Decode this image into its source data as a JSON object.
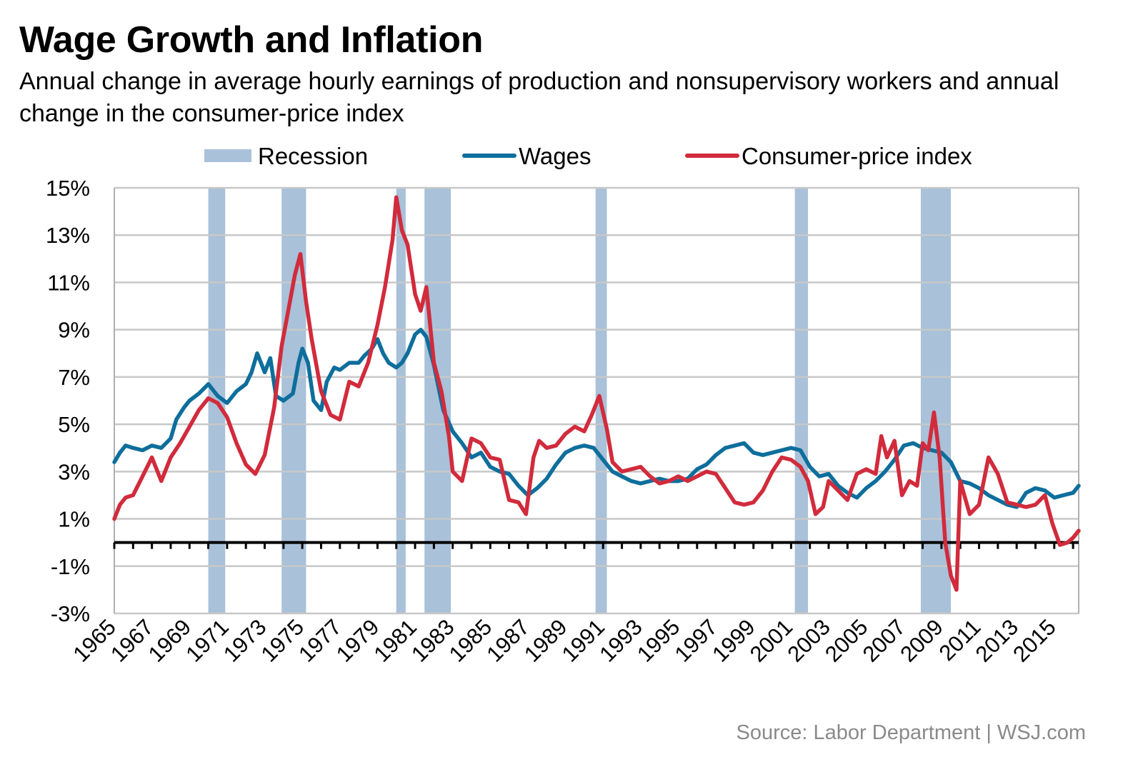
{
  "chart_data": {
    "type": "line",
    "title": "Wage Growth and Inflation",
    "subtitle": "Annual change in average hourly earnings of production and nonsupervisory workers and annual change in the consumer-price index",
    "source": "Source: Labor Department  |  WSJ.com",
    "xlabel": "",
    "ylabel": "",
    "ylim": [
      -3,
      15
    ],
    "xlim": [
      1965,
      2016.3
    ],
    "yticks": [
      15,
      13,
      11,
      9,
      7,
      5,
      3,
      1,
      -1,
      -3
    ],
    "ytick_labels": [
      "15%",
      "13%",
      "11%",
      "9%",
      "7%",
      "5%",
      "3%",
      "1%",
      "-1%",
      "-3%"
    ],
    "xticks": [
      1965,
      1967,
      1969,
      1971,
      1973,
      1975,
      1977,
      1979,
      1981,
      1983,
      1985,
      1987,
      1989,
      1991,
      1993,
      1995,
      1997,
      1999,
      2001,
      2003,
      2005,
      2007,
      2009,
      2011,
      2013,
      2015
    ],
    "xtick_labels": [
      "1965",
      "1967",
      "1969",
      "1971",
      "1973",
      "1975",
      "1977",
      "1979",
      "1981",
      "1983",
      "1985",
      "1987",
      "1989",
      "1991",
      "1993",
      "1995",
      "1997",
      "1999",
      "2001",
      "2003",
      "2005",
      "2007",
      "2009",
      "2011",
      "2013",
      "2015"
    ],
    "grid": true,
    "legend_position": "top-center",
    "legend": [
      {
        "label": "Recession",
        "kind": "band",
        "color": "#a9c1d9"
      },
      {
        "label": "Wages",
        "kind": "line",
        "color": "#0e6e9c"
      },
      {
        "label": "Consumer-price index",
        "kind": "line",
        "color": "#d12b3c"
      }
    ],
    "recessions": [
      [
        1970.0,
        1970.9
      ],
      [
        1973.9,
        1975.2
      ],
      [
        1980.0,
        1980.5
      ],
      [
        1981.5,
        1982.9
      ],
      [
        1990.6,
        1991.2
      ],
      [
        2001.2,
        2001.9
      ],
      [
        2007.9,
        2009.5
      ]
    ],
    "series": [
      {
        "name": "Wages",
        "color": "#0e6e9c",
        "x": [
          1965.0,
          1965.3,
          1965.6,
          1966.0,
          1966.5,
          1967.0,
          1967.5,
          1968.0,
          1968.3,
          1968.7,
          1969.0,
          1969.5,
          1970.0,
          1970.5,
          1971.0,
          1971.5,
          1972.0,
          1972.3,
          1972.6,
          1972.8,
          1973.0,
          1973.3,
          1973.6,
          1974.0,
          1974.5,
          1974.8,
          1975.0,
          1975.3,
          1975.6,
          1976.0,
          1976.3,
          1976.7,
          1977.0,
          1977.5,
          1978.0,
          1978.3,
          1978.7,
          1979.0,
          1979.3,
          1979.6,
          1980.0,
          1980.3,
          1980.6,
          1981.0,
          1981.3,
          1981.6,
          1982.0,
          1982.5,
          1983.0,
          1983.5,
          1984.0,
          1984.5,
          1985.0,
          1985.5,
          1986.0,
          1986.5,
          1987.0,
          1987.5,
          1988.0,
          1988.5,
          1989.0,
          1989.5,
          1990.0,
          1990.5,
          1991.0,
          1991.5,
          1992.0,
          1992.5,
          1993.0,
          1993.5,
          1994.0,
          1994.5,
          1995.0,
          1995.5,
          1996.0,
          1996.5,
          1997.0,
          1997.5,
          1998.0,
          1998.5,
          1999.0,
          1999.5,
          2000.0,
          2000.5,
          2001.0,
          2001.5,
          2002.0,
          2002.5,
          2003.0,
          2003.5,
          2004.0,
          2004.5,
          2005.0,
          2005.5,
          2006.0,
          2006.5,
          2007.0,
          2007.5,
          2008.0,
          2008.5,
          2009.0,
          2009.5,
          2010.0,
          2010.5,
          2011.0,
          2011.5,
          2012.0,
          2012.5,
          2013.0,
          2013.5,
          2014.0,
          2014.5,
          2015.0,
          2015.5,
          2016.0,
          2016.3
        ],
        "values": [
          3.4,
          3.8,
          4.1,
          4.0,
          3.9,
          4.1,
          4.0,
          4.4,
          5.2,
          5.7,
          6.0,
          6.3,
          6.7,
          6.2,
          5.9,
          6.4,
          6.7,
          7.2,
          8.0,
          7.6,
          7.2,
          7.8,
          6.2,
          6.0,
          6.3,
          7.6,
          8.2,
          7.6,
          6.0,
          5.6,
          6.8,
          7.4,
          7.3,
          7.6,
          7.6,
          7.9,
          8.2,
          8.6,
          8.0,
          7.6,
          7.4,
          7.6,
          8.0,
          8.8,
          9.0,
          8.7,
          7.5,
          5.6,
          4.7,
          4.2,
          3.6,
          3.8,
          3.2,
          3.0,
          2.9,
          2.4,
          2.0,
          2.3,
          2.7,
          3.3,
          3.8,
          4.0,
          4.1,
          4.0,
          3.5,
          3.0,
          2.8,
          2.6,
          2.5,
          2.6,
          2.7,
          2.6,
          2.6,
          2.7,
          3.1,
          3.3,
          3.7,
          4.0,
          4.1,
          4.2,
          3.8,
          3.7,
          3.8,
          3.9,
          4.0,
          3.9,
          3.2,
          2.8,
          2.9,
          2.4,
          2.1,
          1.9,
          2.3,
          2.6,
          3.0,
          3.5,
          4.1,
          4.2,
          4.0,
          3.9,
          3.8,
          3.4,
          2.6,
          2.5,
          2.3,
          2.0,
          1.8,
          1.6,
          1.5,
          2.1,
          2.3,
          2.2,
          1.9,
          2.0,
          2.1,
          2.4
        ]
      },
      {
        "name": "Consumer-price index",
        "color": "#d12b3c",
        "x": [
          1965.0,
          1965.3,
          1965.6,
          1966.0,
          1966.5,
          1967.0,
          1967.5,
          1968.0,
          1968.5,
          1969.0,
          1969.5,
          1970.0,
          1970.5,
          1971.0,
          1971.5,
          1972.0,
          1972.5,
          1973.0,
          1973.5,
          1973.9,
          1974.3,
          1974.6,
          1974.9,
          1975.2,
          1975.5,
          1976.0,
          1976.5,
          1977.0,
          1977.5,
          1978.0,
          1978.5,
          1979.0,
          1979.4,
          1979.8,
          1980.0,
          1980.3,
          1980.6,
          1981.0,
          1981.3,
          1981.6,
          1982.0,
          1982.4,
          1982.8,
          1983.0,
          1983.5,
          1984.0,
          1984.5,
          1985.0,
          1985.5,
          1986.0,
          1986.5,
          1986.9,
          1987.3,
          1987.6,
          1988.0,
          1988.5,
          1989.0,
          1989.5,
          1990.0,
          1990.4,
          1990.8,
          1991.2,
          1991.5,
          1992.0,
          1992.5,
          1993.0,
          1993.5,
          1994.0,
          1994.5,
          1995.0,
          1995.5,
          1996.0,
          1996.5,
          1997.0,
          1997.5,
          1998.0,
          1998.5,
          1999.0,
          1999.5,
          2000.0,
          2000.5,
          2001.0,
          2001.5,
          2001.9,
          2002.3,
          2002.7,
          2003.0,
          2003.5,
          2004.0,
          2004.5,
          2005.0,
          2005.5,
          2005.8,
          2006.1,
          2006.5,
          2006.9,
          2007.3,
          2007.7,
          2008.0,
          2008.3,
          2008.6,
          2008.9,
          2009.2,
          2009.5,
          2009.8,
          2010.0,
          2010.5,
          2011.0,
          2011.5,
          2012.0,
          2012.5,
          2013.0,
          2013.5,
          2014.0,
          2014.5,
          2014.9,
          2015.3,
          2015.7,
          2016.0,
          2016.3
        ],
        "values": [
          1.0,
          1.6,
          1.9,
          2.0,
          2.8,
          3.6,
          2.6,
          3.6,
          4.2,
          4.9,
          5.6,
          6.1,
          5.9,
          5.3,
          4.2,
          3.3,
          2.9,
          3.7,
          5.7,
          8.3,
          10.0,
          11.3,
          12.2,
          10.2,
          8.6,
          6.4,
          5.4,
          5.2,
          6.8,
          6.6,
          7.6,
          9.2,
          10.8,
          12.8,
          14.6,
          13.2,
          12.6,
          10.5,
          9.8,
          10.8,
          7.6,
          6.4,
          4.5,
          3.0,
          2.6,
          4.4,
          4.2,
          3.6,
          3.5,
          1.8,
          1.7,
          1.2,
          3.6,
          4.3,
          4.0,
          4.1,
          4.6,
          4.9,
          4.7,
          5.4,
          6.2,
          4.8,
          3.4,
          3.0,
          3.1,
          3.2,
          2.8,
          2.5,
          2.6,
          2.8,
          2.6,
          2.8,
          3.0,
          2.9,
          2.3,
          1.7,
          1.6,
          1.7,
          2.2,
          3.0,
          3.6,
          3.5,
          3.2,
          2.6,
          1.2,
          1.5,
          2.6,
          2.2,
          1.8,
          2.9,
          3.1,
          2.9,
          4.5,
          3.6,
          4.3,
          2.0,
          2.6,
          2.4,
          4.2,
          3.9,
          5.5,
          3.6,
          0.0,
          -1.4,
          -2.0,
          2.6,
          1.2,
          1.6,
          3.6,
          2.9,
          1.7,
          1.6,
          1.5,
          1.6,
          2.0,
          0.8,
          -0.1,
          0.0,
          0.2,
          0.5
        ]
      }
    ]
  }
}
